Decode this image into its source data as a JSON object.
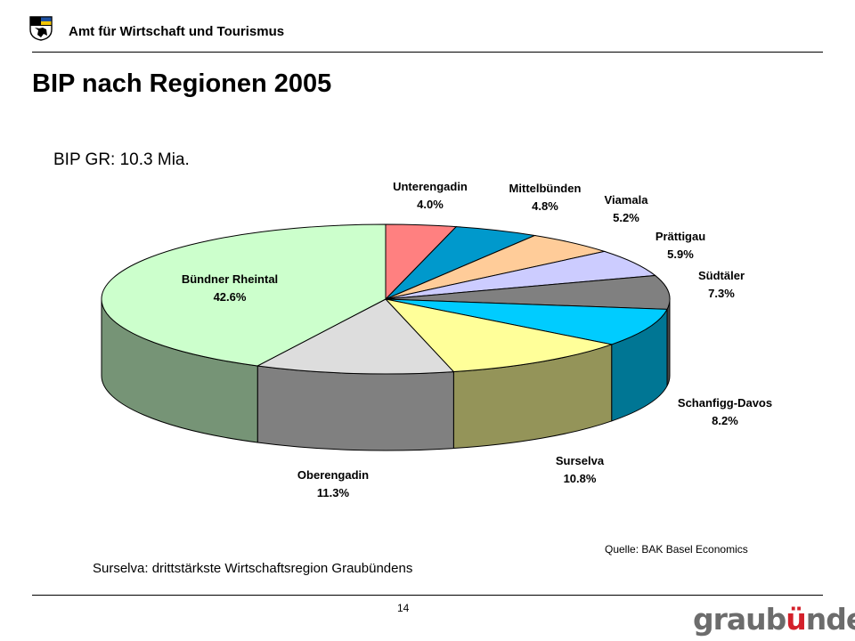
{
  "header": {
    "organization": "Amt für Wirtschaft und Tourismus"
  },
  "page": {
    "title": "BIP nach Regionen 2005",
    "number": "14"
  },
  "chart_data": {
    "type": "pie",
    "style": "3d",
    "subtitle": "BIP GR: 10.3 Mia.",
    "slices": [
      {
        "label": "Unterengadin",
        "value": 4.0,
        "value_label": "4.0%",
        "color": "#ff8080"
      },
      {
        "label": "Mittelbünden",
        "value": 4.8,
        "value_label": "4.8%",
        "color": "#0099cc"
      },
      {
        "label": "Viamala",
        "value": 5.2,
        "value_label": "5.2%",
        "color": "#ffcc99"
      },
      {
        "label": "Prättigau",
        "value": 5.9,
        "value_label": "5.9%",
        "color": "#ccccff"
      },
      {
        "label": "Südtäler",
        "value": 7.3,
        "value_label": "7.3%",
        "color": "#808080"
      },
      {
        "label": "Schanfigg-Davos",
        "value": 8.2,
        "value_label": "8.2%",
        "color": "#00ccff"
      },
      {
        "label": "Surselva",
        "value": 10.8,
        "value_label": "10.8%",
        "color": "#ffff99"
      },
      {
        "label": "Oberengadin",
        "value": 11.3,
        "value_label": "11.3%",
        "color": "#dddddd"
      },
      {
        "label": "Bündner Rheintal",
        "value": 42.6,
        "value_label": "42.6%",
        "color": "#ccffcc"
      }
    ],
    "start": "12 o'clock",
    "direction": "clockwise"
  },
  "source": "Quelle:  BAK Basel Economics",
  "footnote": "Surselva: drittstärkste Wirtschaftsregion Graubündens",
  "brand": {
    "text": "graubünden",
    "color": "#6c6c6c",
    "accent": "#d4202a"
  }
}
